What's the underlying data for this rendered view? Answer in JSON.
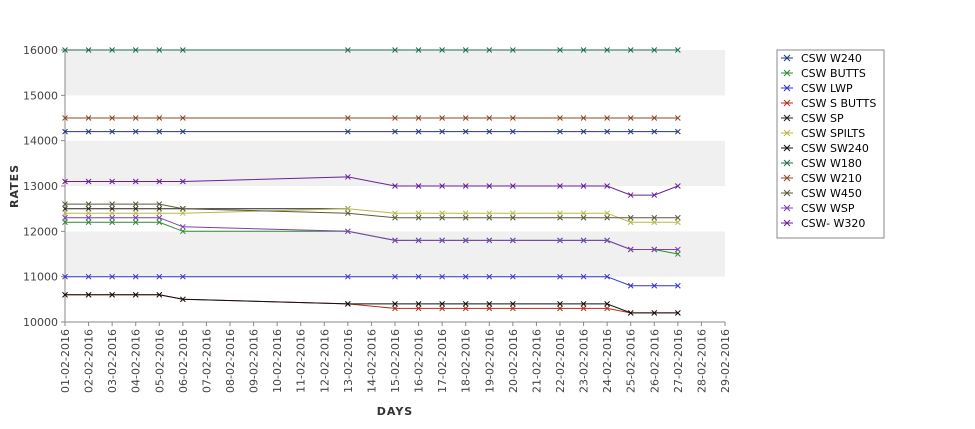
{
  "chart_data": {
    "type": "line",
    "title": "",
    "xlabel": "DAYS",
    "ylabel": "RATES",
    "ylim": [
      10000,
      16000
    ],
    "yticks": [
      10000,
      11000,
      12000,
      13000,
      14000,
      15000,
      16000
    ],
    "x": [
      "01-02-2016",
      "02-02-2016",
      "03-02-2016",
      "04-02-2016",
      "05-02-2016",
      "06-02-2016",
      "07-02-2016",
      "08-02-2016",
      "09-02-2016",
      "10-02-2016",
      "11-02-2016",
      "12-02-2016",
      "13-02-2016",
      "14-02-2016",
      "15-02-2016",
      "16-02-2016",
      "17-02-2016",
      "18-02-2016",
      "19-02-2016",
      "20-02-2016",
      "21-02-2016",
      "22-02-2016",
      "23-02-2016",
      "24-02-2016",
      "25-02-2016",
      "26-02-2016",
      "27-02-2016",
      "28-02-2016",
      "29-02-2016"
    ],
    "grid": "horizontal-bands",
    "legend_position": "right",
    "series": [
      {
        "name": "CSW  W240",
        "color": "#1f3a7a",
        "values": [
          14200,
          14200,
          14200,
          14200,
          14200,
          14200,
          null,
          null,
          null,
          null,
          null,
          null,
          14200,
          null,
          14200,
          14200,
          14200,
          14200,
          14200,
          14200,
          null,
          14200,
          14200,
          14200,
          14200,
          14200,
          14200,
          null,
          null
        ]
      },
      {
        "name": "CSW BUTTS",
        "color": "#2e8b2e",
        "values": [
          12200,
          12200,
          12200,
          12200,
          12200,
          12000,
          null,
          null,
          null,
          null,
          null,
          null,
          12000,
          null,
          11800,
          11800,
          11800,
          11800,
          11800,
          11800,
          null,
          11800,
          11800,
          11800,
          11600,
          11600,
          11500,
          null,
          null
        ]
      },
      {
        "name": "CSW LWP",
        "color": "#3333cc",
        "values": [
          11000,
          11000,
          11000,
          11000,
          11000,
          11000,
          null,
          null,
          null,
          null,
          null,
          null,
          11000,
          null,
          11000,
          11000,
          11000,
          11000,
          11000,
          11000,
          null,
          11000,
          11000,
          11000,
          10800,
          10800,
          10800,
          null,
          null
        ]
      },
      {
        "name": "CSW S BUTTS",
        "color": "#b03020",
        "values": [
          10600,
          10600,
          10600,
          10600,
          10600,
          10500,
          null,
          null,
          null,
          null,
          null,
          null,
          10400,
          null,
          10300,
          10300,
          10300,
          10300,
          10300,
          10300,
          null,
          10300,
          10300,
          10300,
          10200,
          10200,
          10200,
          null,
          null
        ]
      },
      {
        "name": "CSW SP",
        "color": "#222222",
        "values": [
          12500,
          12500,
          12500,
          12500,
          12500,
          12500,
          null,
          null,
          null,
          null,
          null,
          null,
          12500,
          null,
          null,
          null,
          null,
          null,
          null,
          null,
          null,
          null,
          null,
          null,
          null,
          null,
          null,
          null,
          null
        ]
      },
      {
        "name": "CSW SPILTS",
        "color": "#b8b84a",
        "values": [
          12400,
          12400,
          12400,
          12400,
          12400,
          12400,
          null,
          null,
          null,
          null,
          null,
          null,
          12500,
          null,
          12400,
          12400,
          12400,
          12400,
          12400,
          12400,
          null,
          12400,
          12400,
          12400,
          12200,
          12200,
          12200,
          null,
          null
        ]
      },
      {
        "name": "CSW SW240",
        "color": "#111111",
        "values": [
          10600,
          10600,
          10600,
          10600,
          10600,
          10500,
          null,
          null,
          null,
          null,
          null,
          null,
          10400,
          null,
          10400,
          10400,
          10400,
          10400,
          10400,
          10400,
          null,
          10400,
          10400,
          10400,
          10200,
          10200,
          10200,
          null,
          null
        ]
      },
      {
        "name": "CSW W180",
        "color": "#1f6f50",
        "values": [
          16000,
          16000,
          16000,
          16000,
          16000,
          16000,
          null,
          null,
          null,
          null,
          null,
          null,
          16000,
          null,
          16000,
          16000,
          16000,
          16000,
          16000,
          16000,
          null,
          16000,
          16000,
          16000,
          16000,
          16000,
          16000,
          null,
          null
        ]
      },
      {
        "name": "CSW W210",
        "color": "#8a4a2a",
        "values": [
          14500,
          14500,
          14500,
          14500,
          14500,
          14500,
          null,
          null,
          null,
          null,
          null,
          null,
          14500,
          null,
          14500,
          14500,
          14500,
          14500,
          14500,
          14500,
          null,
          14500,
          14500,
          14500,
          14500,
          14500,
          14500,
          null,
          null
        ]
      },
      {
        "name": "CSW W450",
        "color": "#5a5a3a",
        "values": [
          12600,
          12600,
          12600,
          12600,
          12600,
          12500,
          null,
          null,
          null,
          null,
          null,
          null,
          12400,
          null,
          12300,
          12300,
          12300,
          12300,
          12300,
          12300,
          null,
          12300,
          12300,
          12300,
          12300,
          12300,
          12300,
          null,
          null
        ]
      },
      {
        "name": "CSW WSP",
        "color": "#7a40b0",
        "values": [
          12300,
          12300,
          12300,
          12300,
          12300,
          12100,
          null,
          null,
          null,
          null,
          null,
          null,
          12000,
          null,
          11800,
          11800,
          11800,
          11800,
          11800,
          11800,
          null,
          11800,
          11800,
          11800,
          11600,
          11600,
          11600,
          null,
          null
        ]
      },
      {
        "name": "CSW- W320",
        "color": "#6a1f9a",
        "values": [
          13100,
          13100,
          13100,
          13100,
          13100,
          13100,
          null,
          null,
          null,
          null,
          null,
          null,
          13200,
          null,
          13000,
          13000,
          13000,
          13000,
          13000,
          13000,
          null,
          13000,
          13000,
          13000,
          12800,
          12800,
          13000,
          null,
          null
        ]
      }
    ]
  }
}
